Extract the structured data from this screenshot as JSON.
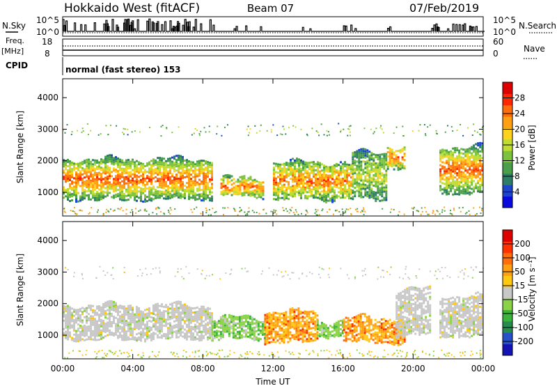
{
  "header": {
    "title": "Hokkaido West (fitACF)",
    "beam": "Beam 07",
    "date": "07/Feb/2019"
  },
  "strips": {
    "nsky_label": "N.Sky",
    "nsearch_label": "N.Search",
    "freq_label": "Freq.",
    "freq_unit": "[MHz]",
    "nave_label": "Nave",
    "cpid_label": "CPID",
    "cpid_text": "normal (fast stereo) 153",
    "noise_ticks": [
      "10^5",
      "10^0"
    ],
    "noise_ticks_right": [
      "10^5",
      "10^0"
    ],
    "freq_ticks": [
      "18",
      "8"
    ],
    "nave_ticks": [
      "60",
      "0"
    ]
  },
  "chart_data": [
    {
      "type": "heatmap",
      "panel": "power",
      "xlabel": "",
      "ylabel": "Slant Range [km]",
      "ylim": [
        250,
        4600
      ],
      "yticks": [
        "1000",
        "2000",
        "3000",
        "4000"
      ],
      "colorbar_label": "Power [dB]",
      "colorbar_ticks": [
        "4",
        "8",
        "12",
        "16",
        "20",
        "24",
        "28"
      ],
      "colorbar_colors": [
        "#0a0adc",
        "#1e46c8",
        "#2e7d66",
        "#4aa04a",
        "#7cc23c",
        "#bedc32",
        "#ffd21e",
        "#ffa014",
        "#ff6e0a",
        "#ff2800",
        "#dc0000"
      ],
      "regions": [
        {
          "t": [
            0,
            8.5
          ],
          "r": [
            700,
            2200
          ],
          "level": "mixed"
        },
        {
          "t": [
            9,
            11.5
          ],
          "r": [
            800,
            1600
          ],
          "level": "high"
        },
        {
          "t": [
            12,
            16.5
          ],
          "r": [
            700,
            2100
          ],
          "level": "high"
        },
        {
          "t": [
            16.5,
            18.5
          ],
          "r": [
            700,
            2400
          ],
          "level": "low"
        },
        {
          "t": [
            18.5,
            19.5
          ],
          "r": [
            1700,
            2600
          ],
          "level": "high"
        },
        {
          "t": [
            21.5,
            24
          ],
          "r": [
            900,
            2600
          ],
          "level": "mixed"
        }
      ]
    },
    {
      "type": "heatmap",
      "panel": "velocity",
      "xlabel": "Time UT",
      "ylabel": "Slant Range [km]",
      "ylim": [
        250,
        4600
      ],
      "yticks": [
        "1000",
        "2000",
        "3000",
        "4000"
      ],
      "xticks": [
        "00:00",
        "04:00",
        "08:00",
        "12:00",
        "16:00",
        "20:00",
        "00:00"
      ],
      "xlim_hours": [
        0,
        24
      ],
      "colorbar_label": "Velocity [m s⁻¹]",
      "colorbar_ticks": [
        "200",
        "100",
        "50",
        "15",
        "-15",
        "-50",
        "-100",
        "-200"
      ],
      "colorbar_colors": [
        "#1414b4",
        "#2850c8",
        "#288c50",
        "#3cb43c",
        "#8cd246",
        "#c8c8c8",
        "#ffc814",
        "#ffa014",
        "#ff6e0a",
        "#ff3200",
        "#dc0000"
      ],
      "regions": [
        {
          "t": [
            0,
            8.5
          ],
          "r": [
            800,
            2100
          ],
          "level": "near-zero"
        },
        {
          "t": [
            8.5,
            11.5
          ],
          "r": [
            800,
            1700
          ],
          "level": "toward-slow"
        },
        {
          "t": [
            11.5,
            14.5
          ],
          "r": [
            700,
            1900
          ],
          "level": "away"
        },
        {
          "t": [
            14.5,
            16
          ],
          "r": [
            900,
            1600
          ],
          "level": "toward-slow"
        },
        {
          "t": [
            16,
            19.5
          ],
          "r": [
            700,
            1700
          ],
          "level": "away"
        },
        {
          "t": [
            19,
            21
          ],
          "r": [
            900,
            2600
          ],
          "level": "near-zero"
        },
        {
          "t": [
            21.5,
            24
          ],
          "r": [
            900,
            2400
          ],
          "level": "near-zero"
        }
      ]
    }
  ]
}
